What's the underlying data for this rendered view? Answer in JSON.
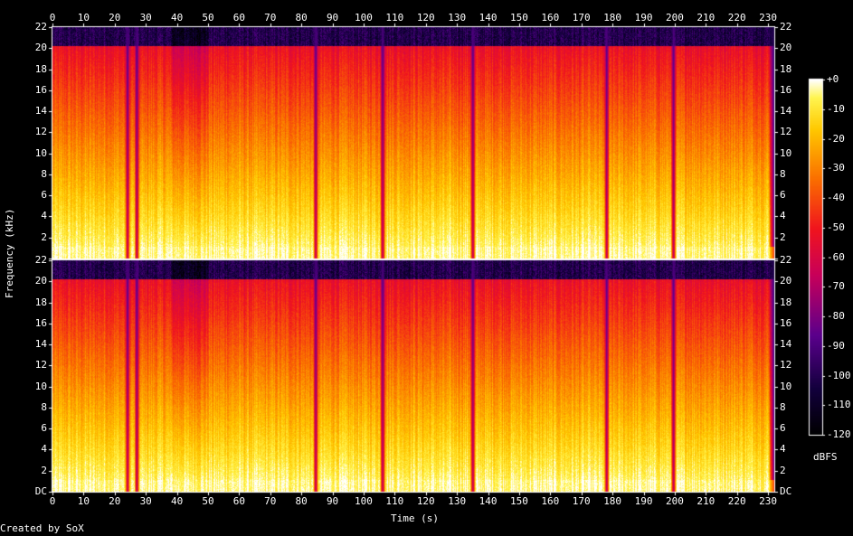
{
  "chart_data": {
    "type": "heatmap",
    "xlabel": "Time (s)",
    "ylabel": "Frequency (kHz)",
    "x_ticks": [
      "0",
      "10",
      "20",
      "30",
      "40",
      "50",
      "60",
      "70",
      "80",
      "90",
      "100",
      "110",
      "120",
      "130",
      "140",
      "150",
      "160",
      "170",
      "180",
      "190",
      "200",
      "210",
      "220",
      "230"
    ],
    "y_ticks_top": [
      "22",
      "20",
      "18",
      "16",
      "14",
      "12",
      "10",
      "8",
      "6",
      "4",
      "2"
    ],
    "y_ticks_bottom": [
      "22",
      "20",
      "18",
      "16",
      "14",
      "12",
      "10",
      "8",
      "6",
      "4",
      "2",
      "DC"
    ],
    "xlim": [
      0,
      232
    ],
    "ylim_khz": [
      0,
      22
    ],
    "channels": 2,
    "colorbar_label": "dBFS",
    "colorbar_ticks": [
      "+0",
      "-10",
      "-20",
      "-30",
      "-40",
      "-50",
      "-60",
      "-70",
      "-80",
      "-90",
      "-100",
      "-110",
      "-120"
    ],
    "colorbar_range": [
      -120,
      0
    ],
    "quiet_gaps_s": [
      24,
      27,
      84.5,
      106,
      135,
      178,
      199.5
    ],
    "end_fade_s": 230
  },
  "footer": {
    "credit": "Created by SoX"
  }
}
